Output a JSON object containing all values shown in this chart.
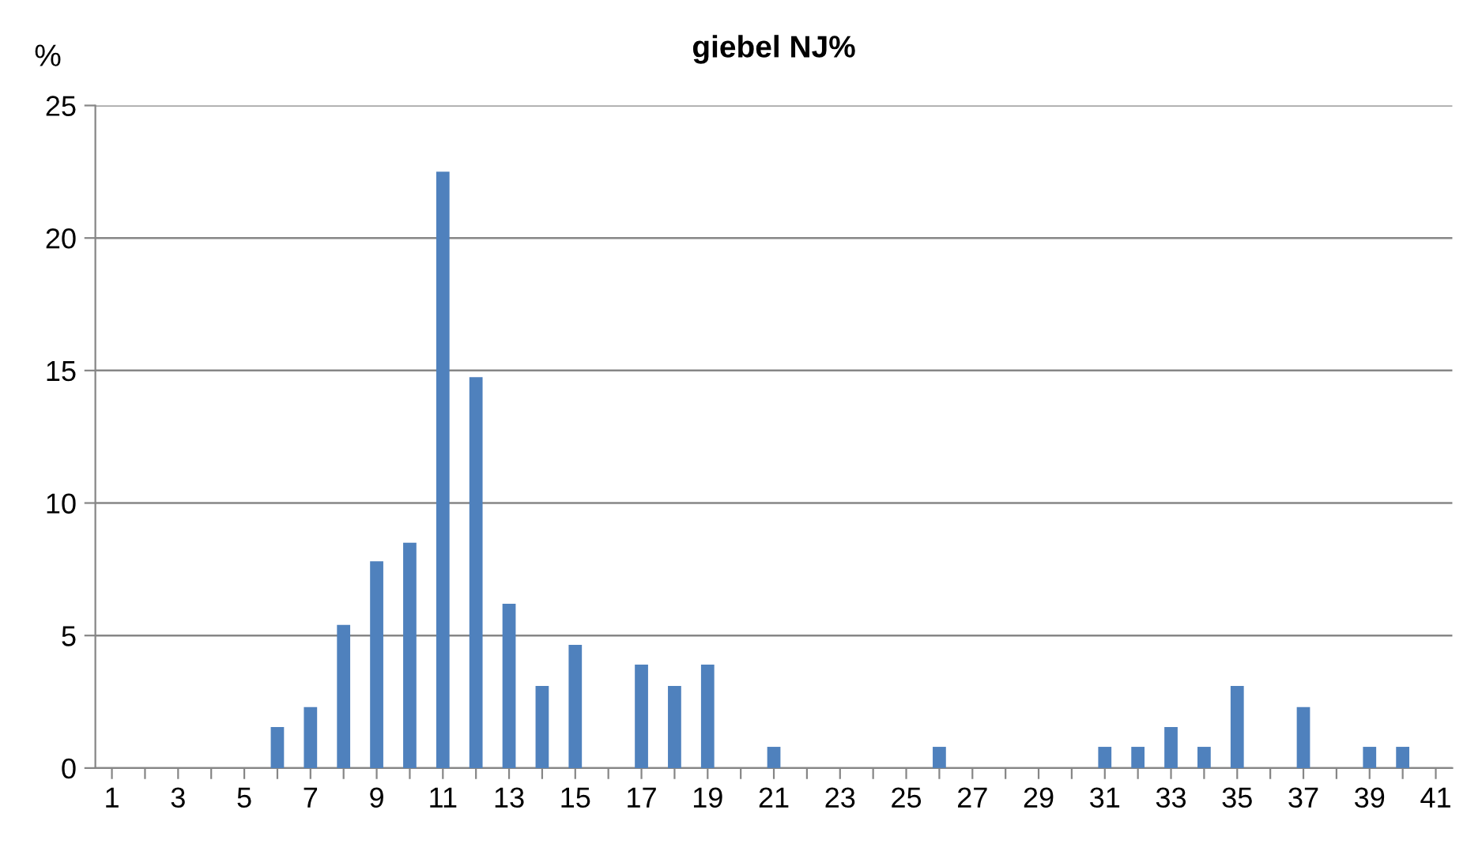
{
  "chart_data": {
    "type": "bar",
    "title": "giebel NJ%",
    "ylabel": "%",
    "categories": [
      "1",
      null,
      "3",
      null,
      "5",
      null,
      "7",
      null,
      "9",
      null,
      "11",
      null,
      "13",
      null,
      "15",
      null,
      "17",
      null,
      "19",
      null,
      "21",
      null,
      "23",
      null,
      "25",
      null,
      "27",
      null,
      "29",
      null,
      "31",
      null,
      "33",
      null,
      "35",
      null,
      "37",
      null,
      "39",
      null,
      "41"
    ],
    "values": [
      0,
      0,
      0,
      0,
      0,
      1.55,
      2.3,
      5.4,
      7.8,
      8.5,
      22.5,
      14.75,
      6.2,
      3.1,
      4.65,
      0,
      3.9,
      3.1,
      3.9,
      0,
      0.8,
      0,
      0,
      0,
      0,
      0.8,
      0,
      0,
      0,
      0,
      0.8,
      0.8,
      1.55,
      0.8,
      3.1,
      0,
      2.3,
      0,
      0.8,
      0.8,
      0
    ],
    "color": "#4f81bd",
    "ylim": [
      0,
      25
    ],
    "yticks": [
      0,
      5,
      10,
      15,
      20,
      25
    ],
    "grid": "y",
    "legend": false
  }
}
